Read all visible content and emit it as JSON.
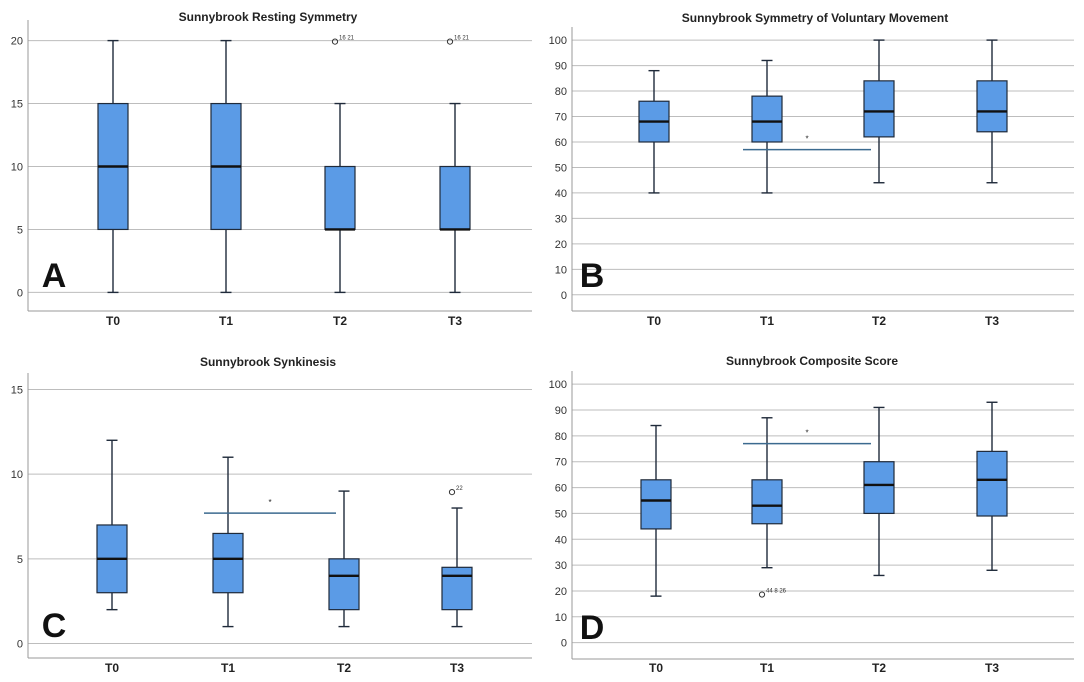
{
  "chart_data": [
    {
      "type": "box",
      "letter": "A",
      "title": "Sunnybrook Resting Symmetry",
      "categories": [
        "T0",
        "T1",
        "T2",
        "T3"
      ],
      "ylim": [
        -1,
        21
      ],
      "yticks": [
        0,
        5,
        10,
        15,
        20
      ],
      "boxes": [
        {
          "category": "T0",
          "min": 0,
          "q1": 5,
          "median": 10,
          "q3": 15,
          "max": 20
        },
        {
          "category": "T1",
          "min": 0,
          "q1": 5,
          "median": 10,
          "q3": 15,
          "max": 20
        },
        {
          "category": "T2",
          "min": 0,
          "q1": 5,
          "median": 5,
          "q3": 10,
          "max": 15
        },
        {
          "category": "T3",
          "min": 0,
          "q1": 5,
          "median": 5,
          "q3": 10,
          "max": 15
        }
      ],
      "outliers": [
        {
          "category": "T2",
          "value": 20,
          "label": "16 21"
        },
        {
          "category": "T3",
          "value": 20,
          "label": "16 21"
        }
      ],
      "significance": []
    },
    {
      "type": "box",
      "letter": "B",
      "title": "Sunnybrook Symmetry of Voluntary Movement",
      "categories": [
        "T0",
        "T1",
        "T2",
        "T3"
      ],
      "ylim": [
        -4,
        102
      ],
      "yticks": [
        0,
        10,
        20,
        30,
        40,
        50,
        60,
        70,
        80,
        90,
        100
      ],
      "boxes": [
        {
          "category": "T0",
          "min": 40,
          "q1": 60,
          "median": 68,
          "q3": 76,
          "max": 88
        },
        {
          "category": "T1",
          "min": 40,
          "q1": 60,
          "median": 68,
          "q3": 78,
          "max": 92
        },
        {
          "category": "T2",
          "min": 44,
          "q1": 62,
          "median": 72,
          "q3": 84,
          "max": 100
        },
        {
          "category": "T3",
          "min": 44,
          "q1": 64,
          "median": 72,
          "q3": 84,
          "max": 100
        }
      ],
      "outliers": [],
      "significance": [
        {
          "from": "T1",
          "to": "T2",
          "y": 57,
          "label": "*"
        }
      ]
    },
    {
      "type": "box",
      "letter": "C",
      "title": "Sunnybrook Synkinesis",
      "categories": [
        "T0",
        "T1",
        "T2",
        "T3"
      ],
      "ylim": [
        -0.5,
        15.5
      ],
      "yticks": [
        0,
        5,
        10,
        15
      ],
      "boxes": [
        {
          "category": "T0",
          "min": 2,
          "q1": 3,
          "median": 5,
          "q3": 7,
          "max": 12
        },
        {
          "category": "T1",
          "min": 1,
          "q1": 3,
          "median": 5,
          "q3": 6.5,
          "max": 11
        },
        {
          "category": "T2",
          "min": 1,
          "q1": 2,
          "median": 4,
          "q3": 5,
          "max": 9
        },
        {
          "category": "T3",
          "min": 1,
          "q1": 2,
          "median": 4,
          "q3": 4.5,
          "max": 8
        }
      ],
      "outliers": [
        {
          "category": "T3",
          "value": 9,
          "label": "22"
        }
      ],
      "significance": [
        {
          "from": "T1",
          "to": "T2",
          "y": 7.7,
          "label": "*"
        }
      ]
    },
    {
      "type": "box",
      "letter": "D",
      "title": "Sunnybrook Composite Score",
      "categories": [
        "T0",
        "T1",
        "T2",
        "T3"
      ],
      "ylim": [
        -4,
        102
      ],
      "yticks": [
        0,
        10,
        20,
        30,
        40,
        50,
        60,
        70,
        80,
        90,
        100
      ],
      "boxes": [
        {
          "category": "T0",
          "min": 18,
          "q1": 44,
          "median": 55,
          "q3": 63,
          "max": 84
        },
        {
          "category": "T1",
          "min": 29,
          "q1": 46,
          "median": 53,
          "q3": 63,
          "max": 87
        },
        {
          "category": "T2",
          "min": 26,
          "q1": 50,
          "median": 61,
          "q3": 70,
          "max": 91
        },
        {
          "category": "T3",
          "min": 28,
          "q1": 49,
          "median": 63,
          "q3": 74,
          "max": 93
        }
      ],
      "outliers": [
        {
          "category": "T1",
          "value": 19,
          "label": "44 8 26"
        }
      ],
      "significance": [
        {
          "from": "T1",
          "to": "T2",
          "y": 77,
          "label": "*"
        }
      ]
    }
  ],
  "colors": {
    "box_fill": "#5b9be6",
    "box_stroke": "#1f2a3a",
    "gridline": "#bdbdbd",
    "sig_line": "#3b6a8f",
    "axis": "#999999"
  }
}
